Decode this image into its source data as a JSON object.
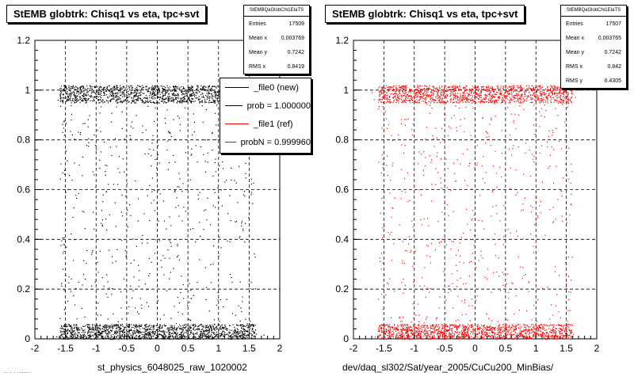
{
  "panels": [
    {
      "title": "StEMB globtrk: Chisq1 vs eta, tpc+svt",
      "stats": {
        "name": "StEMBQaGlobChi1EtaTS",
        "rows": [
          {
            "label": "Entries",
            "value": "17509"
          },
          {
            "label": "Mean x",
            "value": "0.003769"
          },
          {
            "label": "Mean y",
            "value": "0.7242"
          },
          {
            "label": "RMS x",
            "value": "0.8419"
          }
        ]
      },
      "xaxis_title": "st_physics_6048025_raw_1020002",
      "marker_color": "#000000"
    },
    {
      "title": "StEMB globtrk: Chisq1 vs eta, tpc+svt",
      "stats": {
        "name": "StEMBQaGlobChi1EtaTS",
        "rows": [
          {
            "label": "Entries",
            "value": "17507"
          },
          {
            "label": "Mean x",
            "value": "0.003765"
          },
          {
            "label": "Mean y",
            "value": "0.7242"
          },
          {
            "label": "RMS x",
            "value": "0.842"
          },
          {
            "label": "RMS y",
            "value": "0.4305"
          }
        ]
      },
      "xaxis_title": "dev/daq_sl302/Sat/year_2005/CuCu200_MinBias/",
      "marker_color": "#ff0000"
    }
  ],
  "legend": {
    "entries": [
      {
        "label": "_file0 (new)",
        "color": "#000000"
      },
      {
        "label": "prob = 1.000000",
        "color": "#000000"
      },
      {
        "label": "_file1 (ref)",
        "color": "#ff0000"
      },
      {
        "label": "probN = 0.999960",
        "color": "#ff0000"
      }
    ]
  },
  "footer": "... .. . .........",
  "chart_data": [
    {
      "type": "scatter",
      "title": "StEMB globtrk: Chisq1 vs eta, tpc+svt",
      "xlabel": "st_physics_6048025_raw_1020002",
      "ylabel": "",
      "xlim": [
        -2,
        2
      ],
      "ylim": [
        0,
        1.2
      ],
      "xticks": [
        "-2",
        "-1.5",
        "-1",
        "-0.5",
        "0",
        "0.5",
        "1",
        "1.5",
        "2"
      ],
      "yticks": [
        "0",
        "0.2",
        "0.4",
        "0.6",
        "0.8",
        "1",
        "1.2"
      ],
      "grid": true,
      "color": "#000000",
      "bands": [
        {
          "x_range": [
            -1.6,
            1.6
          ],
          "y_range": [
            0.95,
            1.02
          ],
          "density": "high"
        },
        {
          "x_range": [
            -1.6,
            1.6
          ],
          "y_range": [
            0.0,
            0.06
          ],
          "density": "high"
        },
        {
          "x_range": [
            -1.6,
            1.6
          ],
          "y_range": [
            0.06,
            0.95
          ],
          "density": "low"
        }
      ]
    },
    {
      "type": "scatter",
      "title": "StEMB globtrk: Chisq1 vs eta, tpc+svt",
      "xlabel": "dev/daq_sl302/Sat/year_2005/CuCu200_MinBias/",
      "ylabel": "",
      "xlim": [
        -2,
        2
      ],
      "ylim": [
        0,
        1.2
      ],
      "xticks": [
        "-2",
        "-1.5",
        "-1",
        "-0.5",
        "0",
        "0.5",
        "1",
        "1.5",
        "2"
      ],
      "yticks": [
        "0",
        "0.2",
        "0.4",
        "0.6",
        "0.8",
        "1",
        "1.2"
      ],
      "grid": true,
      "color": "#ff0000",
      "bands": [
        {
          "x_range": [
            -1.6,
            1.6
          ],
          "y_range": [
            0.95,
            1.02
          ],
          "density": "high"
        },
        {
          "x_range": [
            -1.6,
            1.6
          ],
          "y_range": [
            0.0,
            0.06
          ],
          "density": "high"
        },
        {
          "x_range": [
            -1.6,
            1.6
          ],
          "y_range": [
            0.06,
            0.95
          ],
          "density": "low"
        }
      ]
    }
  ]
}
